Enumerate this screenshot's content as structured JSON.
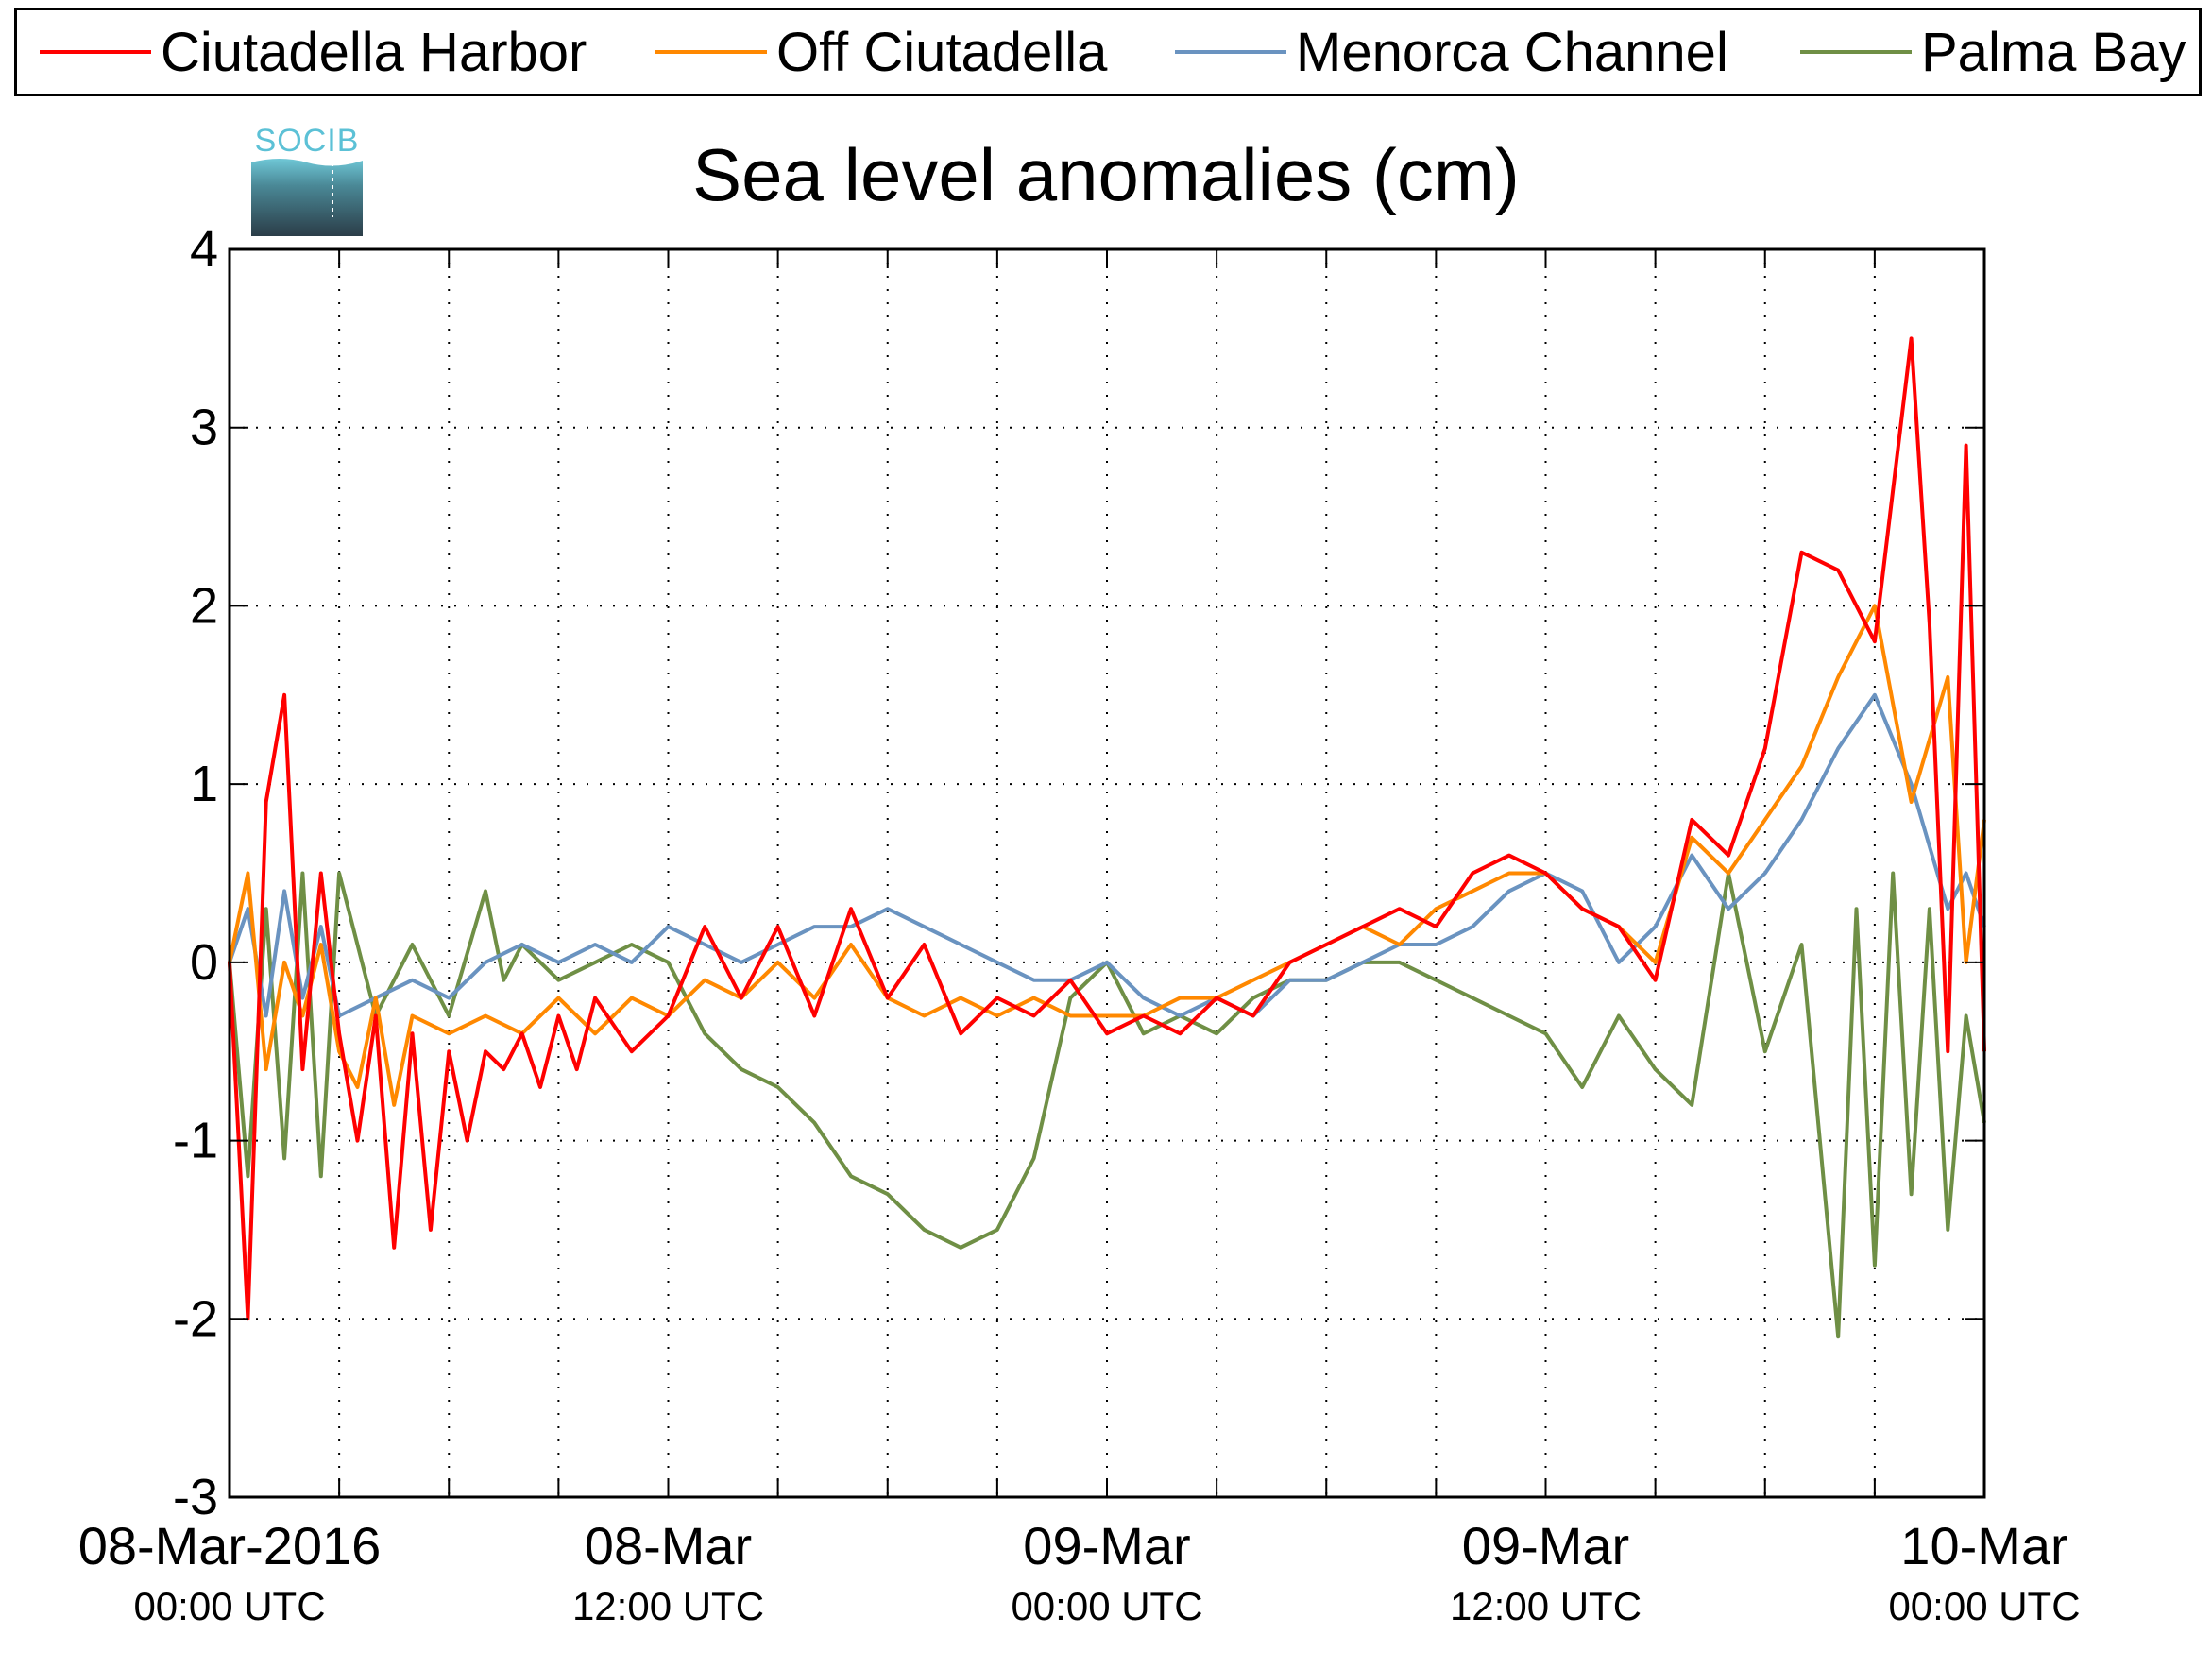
{
  "legend": [
    {
      "label": "Ciutadella Harbor",
      "color": "#ff0000"
    },
    {
      "label": "Off Ciutadella",
      "color": "#ff8800"
    },
    {
      "label": "Menorca Channel",
      "color": "#6a93c0"
    },
    {
      "label": "Palma Bay",
      "color": "#6f8f45"
    }
  ],
  "logo": {
    "text": "SOCIB"
  },
  "chart_data": {
    "type": "line",
    "title": "Sea level anomalies (cm)",
    "xlabel": "",
    "ylabel": "",
    "ylim": [
      -3,
      4
    ],
    "yticks": [
      "-3",
      "-2",
      "-1",
      "0",
      "1",
      "2",
      "3",
      "4"
    ],
    "xlim_hours": [
      0,
      48
    ],
    "xtick_labels": [
      {
        "date": "08-Mar-2016",
        "time": "00:00 UTC"
      },
      {
        "date": "08-Mar",
        "time": "12:00 UTC"
      },
      {
        "date": "09-Mar",
        "time": "00:00 UTC"
      },
      {
        "date": "09-Mar",
        "time": "12:00 UTC"
      },
      {
        "date": "10-Mar",
        "time": "00:00 UTC"
      }
    ],
    "grid": true,
    "legend_position": "top",
    "series": [
      {
        "name": "Ciutadella Harbor",
        "color": "#ff0000",
        "x": [
          0,
          0.5,
          1,
          1.5,
          2,
          2.5,
          3,
          3.5,
          4,
          4.5,
          5,
          5.5,
          6,
          6.5,
          7,
          7.5,
          8,
          8.5,
          9,
          9.5,
          10,
          11,
          12,
          13,
          14,
          15,
          16,
          17,
          18,
          19,
          20,
          21,
          22,
          23,
          24,
          25,
          26,
          27,
          28,
          29,
          30,
          31,
          32,
          33,
          34,
          35,
          36,
          37,
          38,
          39,
          40,
          41,
          42,
          43,
          44,
          45,
          46,
          46.5,
          47,
          47.5,
          48
        ],
        "y": [
          0,
          -2.0,
          0.9,
          1.5,
          -0.6,
          0.5,
          -0.4,
          -1.0,
          -0.3,
          -1.6,
          -0.4,
          -1.5,
          -0.5,
          -1.0,
          -0.5,
          -0.6,
          -0.4,
          -0.7,
          -0.3,
          -0.6,
          -0.2,
          -0.5,
          -0.3,
          0.2,
          -0.2,
          0.2,
          -0.3,
          0.3,
          -0.2,
          0.1,
          -0.4,
          -0.2,
          -0.3,
          -0.1,
          -0.4,
          -0.3,
          -0.4,
          -0.2,
          -0.3,
          0.0,
          0.1,
          0.2,
          0.3,
          0.2,
          0.5,
          0.6,
          0.5,
          0.3,
          0.2,
          -0.1,
          0.8,
          0.6,
          1.2,
          2.3,
          2.2,
          1.8,
          3.5,
          1.9,
          -0.5,
          2.9,
          -0.5
        ]
      },
      {
        "name": "Off Ciutadella",
        "color": "#ff8800",
        "x": [
          0,
          0.5,
          1,
          1.5,
          2,
          2.5,
          3,
          3.5,
          4,
          4.5,
          5,
          6,
          7,
          8,
          9,
          10,
          11,
          12,
          13,
          14,
          15,
          16,
          17,
          18,
          19,
          20,
          21,
          22,
          23,
          24,
          25,
          26,
          27,
          28,
          29,
          30,
          31,
          32,
          33,
          34,
          35,
          36,
          37,
          38,
          39,
          40,
          41,
          42,
          43,
          44,
          45,
          46,
          47,
          47.5,
          48
        ],
        "y": [
          0,
          0.5,
          -0.6,
          0.0,
          -0.3,
          0.1,
          -0.5,
          -0.7,
          -0.2,
          -0.8,
          -0.3,
          -0.4,
          -0.3,
          -0.4,
          -0.2,
          -0.4,
          -0.2,
          -0.3,
          -0.1,
          -0.2,
          0.0,
          -0.2,
          0.1,
          -0.2,
          -0.3,
          -0.2,
          -0.3,
          -0.2,
          -0.3,
          -0.3,
          -0.3,
          -0.2,
          -0.2,
          -0.1,
          0.0,
          0.1,
          0.2,
          0.1,
          0.3,
          0.4,
          0.5,
          0.5,
          0.3,
          0.2,
          0.0,
          0.7,
          0.5,
          0.8,
          1.1,
          1.6,
          2.0,
          0.9,
          1.6,
          0.0,
          0.8
        ]
      },
      {
        "name": "Menorca Channel",
        "color": "#6a93c0",
        "x": [
          0,
          0.5,
          1,
          1.5,
          2,
          2.5,
          3,
          4,
          5,
          6,
          7,
          8,
          9,
          10,
          11,
          12,
          13,
          14,
          15,
          16,
          17,
          18,
          19,
          20,
          21,
          22,
          23,
          24,
          25,
          26,
          27,
          28,
          29,
          30,
          31,
          32,
          33,
          34,
          35,
          36,
          37,
          38,
          39,
          40,
          41,
          42,
          43,
          44,
          45,
          46,
          47,
          47.5,
          48
        ],
        "y": [
          0,
          0.3,
          -0.3,
          0.4,
          -0.2,
          0.2,
          -0.3,
          -0.2,
          -0.1,
          -0.2,
          0.0,
          0.1,
          0.0,
          0.1,
          0.0,
          0.2,
          0.1,
          0.0,
          0.1,
          0.2,
          0.2,
          0.3,
          0.2,
          0.1,
          0.0,
          -0.1,
          -0.1,
          0.0,
          -0.2,
          -0.3,
          -0.2,
          -0.3,
          -0.1,
          -0.1,
          0.0,
          0.1,
          0.1,
          0.2,
          0.4,
          0.5,
          0.4,
          0.0,
          0.2,
          0.6,
          0.3,
          0.5,
          0.8,
          1.2,
          1.5,
          1.0,
          0.3,
          0.5,
          0.2
        ]
      },
      {
        "name": "Palma Bay",
        "color": "#6f8f45",
        "x": [
          0,
          0.5,
          1,
          1.5,
          2,
          2.5,
          3,
          4,
          5,
          6,
          7,
          7.5,
          8,
          9,
          10,
          11,
          12,
          13,
          14,
          15,
          16,
          17,
          18,
          19,
          20,
          21,
          22,
          23,
          24,
          25,
          26,
          27,
          28,
          29,
          30,
          31,
          32,
          33,
          34,
          35,
          36,
          37,
          38,
          39,
          40,
          41,
          42,
          43,
          44,
          44.5,
          45,
          45.5,
          46,
          46.5,
          47,
          47.5,
          48
        ],
        "y": [
          0,
          -1.2,
          0.3,
          -1.1,
          0.5,
          -1.2,
          0.5,
          -0.3,
          0.1,
          -0.3,
          0.4,
          -0.1,
          0.1,
          -0.1,
          0.0,
          0.1,
          0.0,
          -0.4,
          -0.6,
          -0.7,
          -0.9,
          -1.2,
          -1.3,
          -1.5,
          -1.6,
          -1.5,
          -1.1,
          -0.2,
          0.0,
          -0.4,
          -0.3,
          -0.4,
          -0.2,
          -0.1,
          -0.1,
          0.0,
          0.0,
          -0.1,
          -0.2,
          -0.3,
          -0.4,
          -0.7,
          -0.3,
          -0.6,
          -0.8,
          0.5,
          -0.5,
          0.1,
          -2.1,
          0.3,
          -1.7,
          0.5,
          -1.3,
          0.3,
          -1.5,
          -0.3,
          -0.9
        ]
      }
    ]
  }
}
